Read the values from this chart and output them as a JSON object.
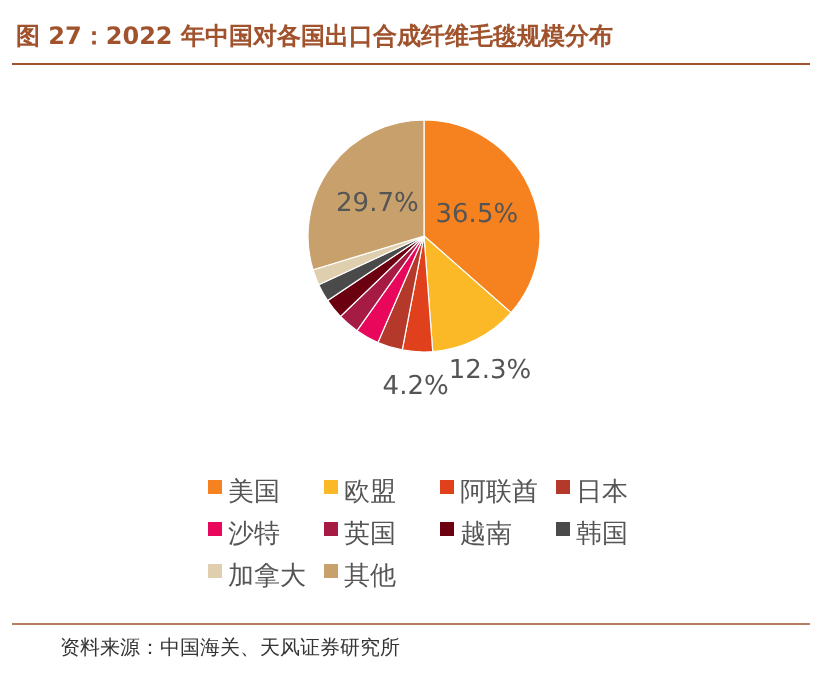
{
  "chart_data": {
    "type": "pie",
    "title": "图 27：2022 年中国对各国出口合成纤维毛毯规模分布",
    "categories": [
      "美国",
      "欧盟",
      "阿联酋",
      "日本",
      "沙特",
      "英国",
      "越南",
      "韩国",
      "加拿大",
      "其他"
    ],
    "values": [
      36.5,
      12.3,
      4.2,
      3.5,
      3.3,
      3.0,
      2.8,
      2.5,
      2.2,
      29.7
    ],
    "value_labels": [
      "36.5%",
      "12.3%",
      "4.2%",
      null,
      null,
      null,
      null,
      null,
      null,
      "29.7%"
    ],
    "colors": [
      "#f5821f",
      "#fbb827",
      "#e0401c",
      "#b5392a",
      "#e8075a",
      "#a51b44",
      "#6b0010",
      "#4a4a4a",
      "#e0cfae",
      "#c8a06c"
    ],
    "legend": "bottom",
    "annotations": [
      "资料来源：中国海关、天风证券研究所"
    ]
  }
}
